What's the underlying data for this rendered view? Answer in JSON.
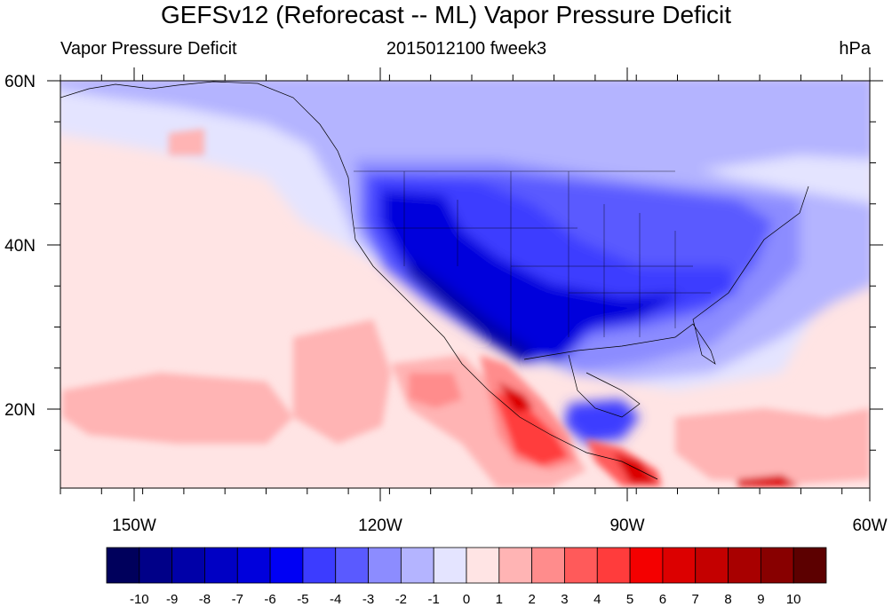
{
  "header": {
    "title": "GEFSv12 (Reforecast -- ML) Vapor Pressure Deficit",
    "left": "Vapor Pressure Deficit",
    "center": "2015012100 fweek3",
    "right": "hPa"
  },
  "map": {
    "lon_labels": [
      "150W",
      "120W",
      "90W",
      "60W"
    ],
    "lat_labels": [
      "60N",
      "40N",
      "20N"
    ]
  },
  "colorbar": {
    "labels": [
      "-10",
      "-9",
      "-8",
      "-7",
      "-6",
      "-5",
      "-4",
      "-3",
      "-2",
      "-1",
      "0",
      "1",
      "2",
      "3",
      "4",
      "5",
      "6",
      "7",
      "8",
      "9",
      "10"
    ],
    "colors": [
      "#00005c",
      "#000088",
      "#0000a8",
      "#0000c4",
      "#0000dc",
      "#0000f4",
      "#3c3cff",
      "#5a5aff",
      "#8c8cff",
      "#b4b4ff",
      "#e4e4ff",
      "#ffe4e4",
      "#ffb4b4",
      "#ff8c8c",
      "#ff5a5a",
      "#ff3c3c",
      "#f40000",
      "#dc0000",
      "#c40000",
      "#a80000",
      "#880000",
      "#5c0000"
    ]
  }
}
